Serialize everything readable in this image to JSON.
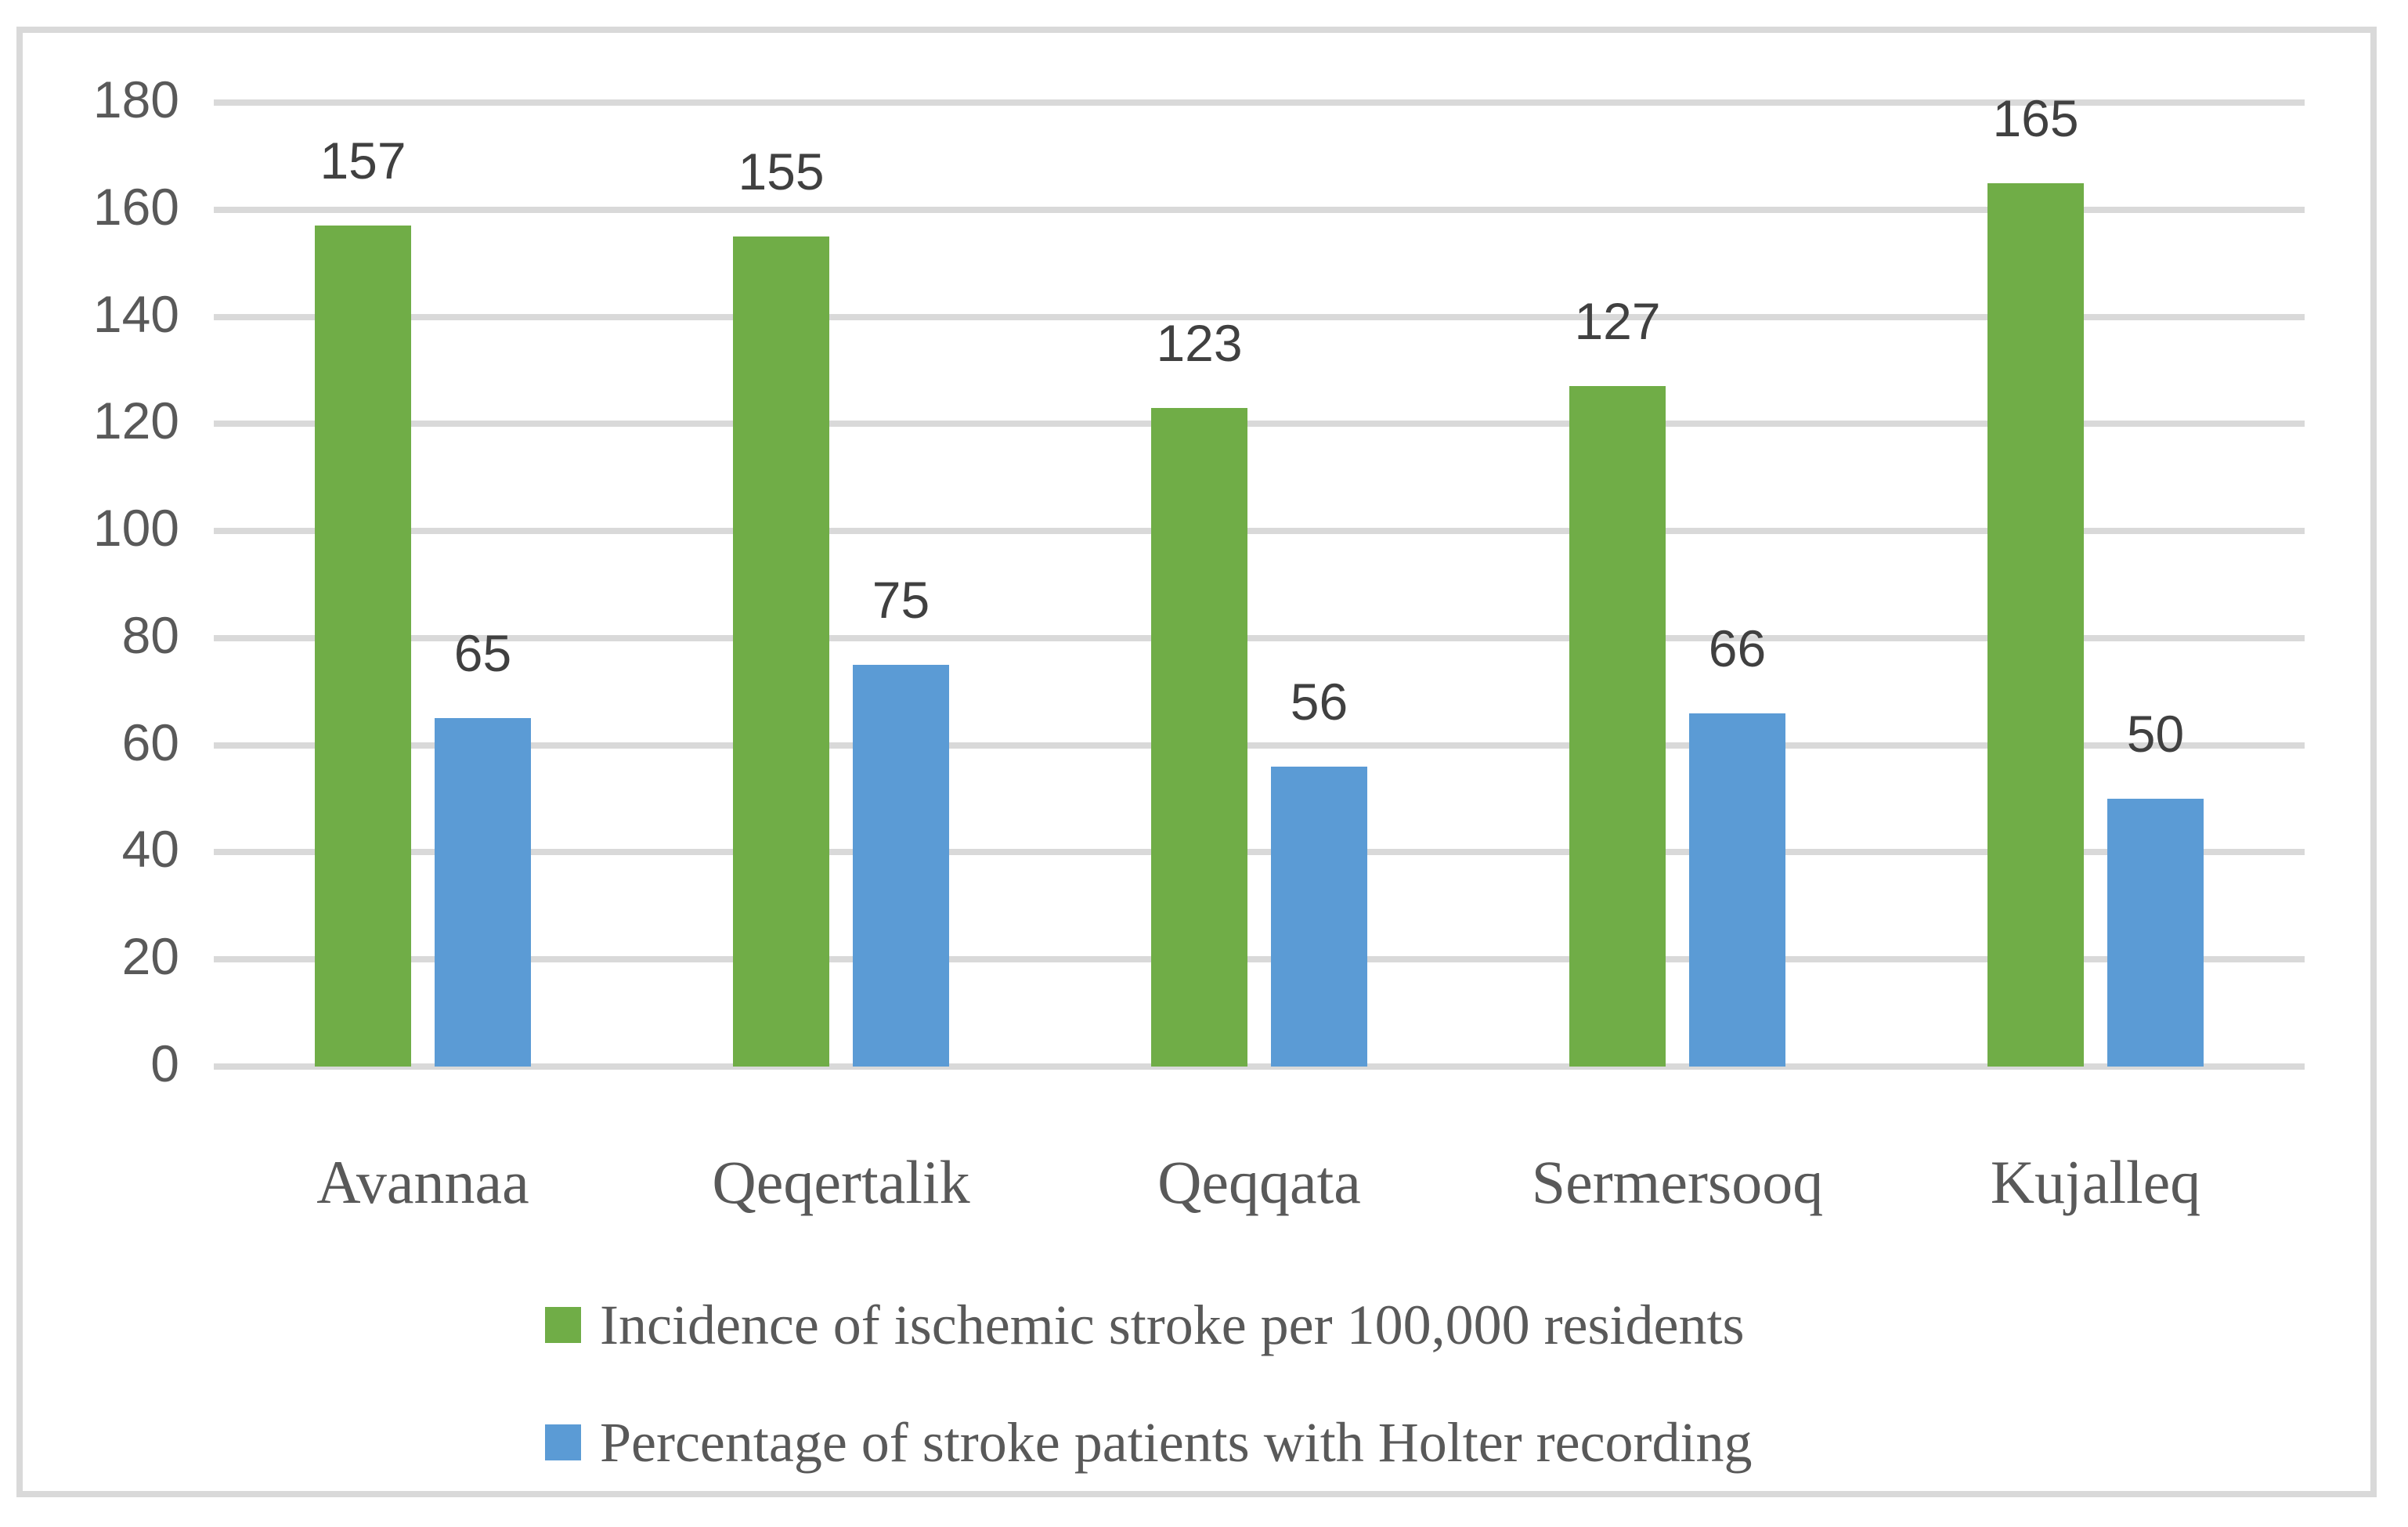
{
  "figure": {
    "background_color": "#FFFFFF",
    "border_color": "#D9D9D9"
  },
  "chart_data": {
    "type": "bar",
    "title": "",
    "xlabel": "",
    "ylabel": "",
    "categories": [
      "Avannaa",
      "Qeqertalik",
      "Qeqqata",
      "Sermersooq",
      "Kujalleq"
    ],
    "series": [
      {
        "name": "Incidence of ischemic stroke per 100,000 residents",
        "color": "#70AD47",
        "values": [
          157,
          155,
          123,
          127,
          165
        ]
      },
      {
        "name": "Percentage of stroke patients with Holter recording",
        "color": "#5B9BD5",
        "values": [
          65,
          75,
          56,
          66,
          50
        ]
      }
    ],
    "ylim": [
      0,
      180
    ],
    "yticks": [
      0,
      20,
      40,
      60,
      80,
      100,
      120,
      140,
      160,
      180
    ],
    "grid": true,
    "gridline_color": "#D9D9D9",
    "tick_label_color": "#595959",
    "data_label_color": "#404040",
    "data_labels": true,
    "legend_position": "bottom-left"
  }
}
